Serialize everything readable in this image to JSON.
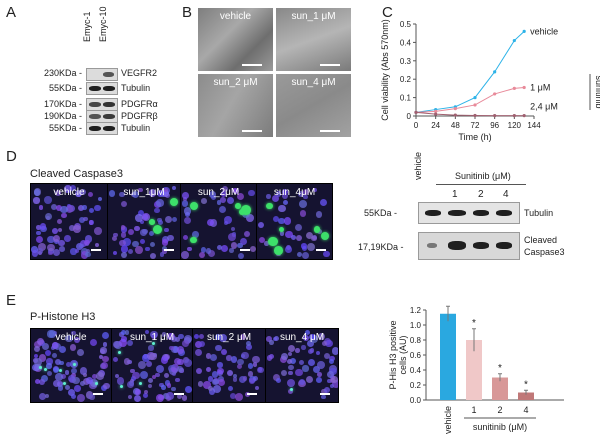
{
  "panels": {
    "A": {
      "letter": "A",
      "lanes": [
        "Emyc-1",
        "Emyc-10"
      ],
      "rows": [
        {
          "mw": "230KDa -",
          "protein": "VEGFR2"
        },
        {
          "mw": "55KDa -",
          "protein": "Tubulin"
        },
        {
          "mw": "170KDa -",
          "protein": "PDGFRα"
        },
        {
          "mw": "190KDa -",
          "protein": "PDGFRβ"
        },
        {
          "mw": "55KDa -",
          "protein": "Tubulin"
        }
      ]
    },
    "B": {
      "letter": "B",
      "images": [
        {
          "label": "vehicle"
        },
        {
          "label": "sun_1 μM"
        },
        {
          "label": "sun_2 μM"
        },
        {
          "label": "sun_4 μM"
        }
      ]
    },
    "D": {
      "letter": "D",
      "title": "Cleaved Caspase3",
      "images": [
        {
          "label": "vehicle"
        },
        {
          "label": "sun_1μM"
        },
        {
          "label": "sun_2μM"
        },
        {
          "label": "sun_4μM"
        }
      ],
      "blot": {
        "header": "Sunitinib (μM)",
        "vehicle_label": "vehicle",
        "doses": [
          "1",
          "2",
          "4"
        ],
        "rows": [
          {
            "mw": "55KDa -",
            "protein": "Tubulin"
          },
          {
            "mw": "17,19KDa -",
            "protein_line1": "Cleaved",
            "protein_line2": "Caspase3"
          }
        ]
      }
    },
    "E": {
      "letter": "E",
      "title": "P-Histone H3",
      "images": [
        {
          "label": "vehicle"
        },
        {
          "label": "sun_1 μM"
        },
        {
          "label": "sun_2 μM"
        },
        {
          "label": "sun_4 μM"
        }
      ]
    },
    "C_letter": "C"
  },
  "chart_data": [
    {
      "id": "C",
      "type": "line",
      "xlabel": "Time (h)",
      "ylabel": "Cell viability (Abs 570nm)",
      "xticks": [
        0,
        24,
        48,
        72,
        96,
        120,
        144
      ],
      "yticks": [
        "0",
        "0.1",
        "0.2",
        "0.3",
        "0.4",
        "0.5"
      ],
      "xlim": [
        0,
        144
      ],
      "ylim": [
        0,
        0.5
      ],
      "series": [
        {
          "name": "vehicle",
          "color": "#2db3e8",
          "x": [
            0,
            24,
            48,
            72,
            96,
            120,
            132
          ],
          "y": [
            0.02,
            0.035,
            0.05,
            0.1,
            0.24,
            0.41,
            0.46
          ]
        },
        {
          "name": "1 μM",
          "color": "#e88a9a",
          "x": [
            0,
            24,
            48,
            72,
            96,
            120,
            132
          ],
          "y": [
            0.02,
            0.025,
            0.04,
            0.06,
            0.12,
            0.15,
            0.155
          ]
        },
        {
          "name": "2,4 μM",
          "color": "#a06070",
          "x": [
            0,
            24,
            48,
            72,
            96,
            120,
            132
          ],
          "y": [
            0.02,
            0.01,
            0.005,
            0.003,
            0.002,
            0.002,
            0.002
          ]
        }
      ],
      "side_label": "sunitinib"
    },
    {
      "id": "E-bar",
      "type": "bar",
      "ylabel_line1": "P-His H3 positive",
      "ylabel_line2": "cells (AU)",
      "yticks": [
        "0.0",
        "0.2",
        "0.4",
        "0.6",
        "0.8",
        "1.0",
        "1.2"
      ],
      "ylim": [
        0,
        1.2
      ],
      "categories": [
        "vehicle",
        "1",
        "2",
        "4"
      ],
      "values": [
        1.15,
        0.8,
        0.3,
        0.1
      ],
      "errors": [
        0.1,
        0.15,
        0.05,
        0.03
      ],
      "colors": [
        "#2aa8e0",
        "#f0c8c8",
        "#d89898",
        "#c07878"
      ],
      "significance": [
        "",
        "*",
        "*",
        "*"
      ],
      "group_label": "sunitinib (μM)"
    }
  ]
}
